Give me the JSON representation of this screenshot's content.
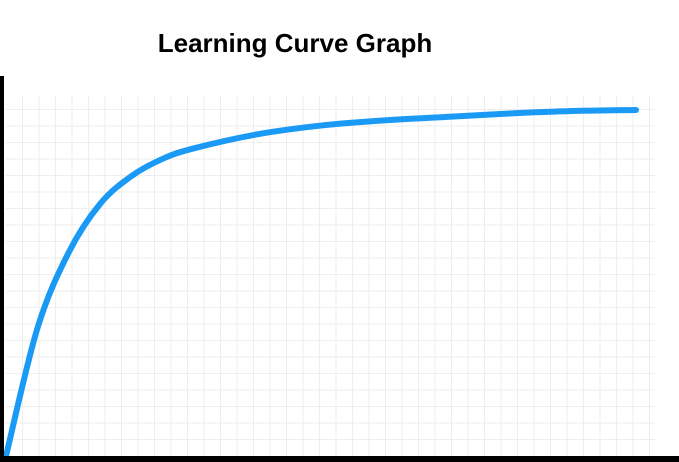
{
  "chart_data": {
    "type": "line",
    "title": "Learning Curve Graph",
    "xlabel": "",
    "ylabel": "",
    "xlim": [
      0,
      1
    ],
    "ylim": [
      0,
      1
    ],
    "grid": true,
    "series": [
      {
        "color": "#1a9af5",
        "x": [
          0,
          0.05,
          0.1,
          0.15,
          0.2,
          0.25,
          0.3,
          0.4,
          0.5,
          0.6,
          0.7,
          0.8,
          0.9,
          1.0
        ],
        "y": [
          0,
          0.37,
          0.59,
          0.73,
          0.81,
          0.86,
          0.89,
          0.93,
          0.955,
          0.97,
          0.98,
          0.99,
          0.997,
          1.0
        ]
      }
    ],
    "colors": {
      "grid": "#eeeeee",
      "axis": "#000000"
    }
  }
}
